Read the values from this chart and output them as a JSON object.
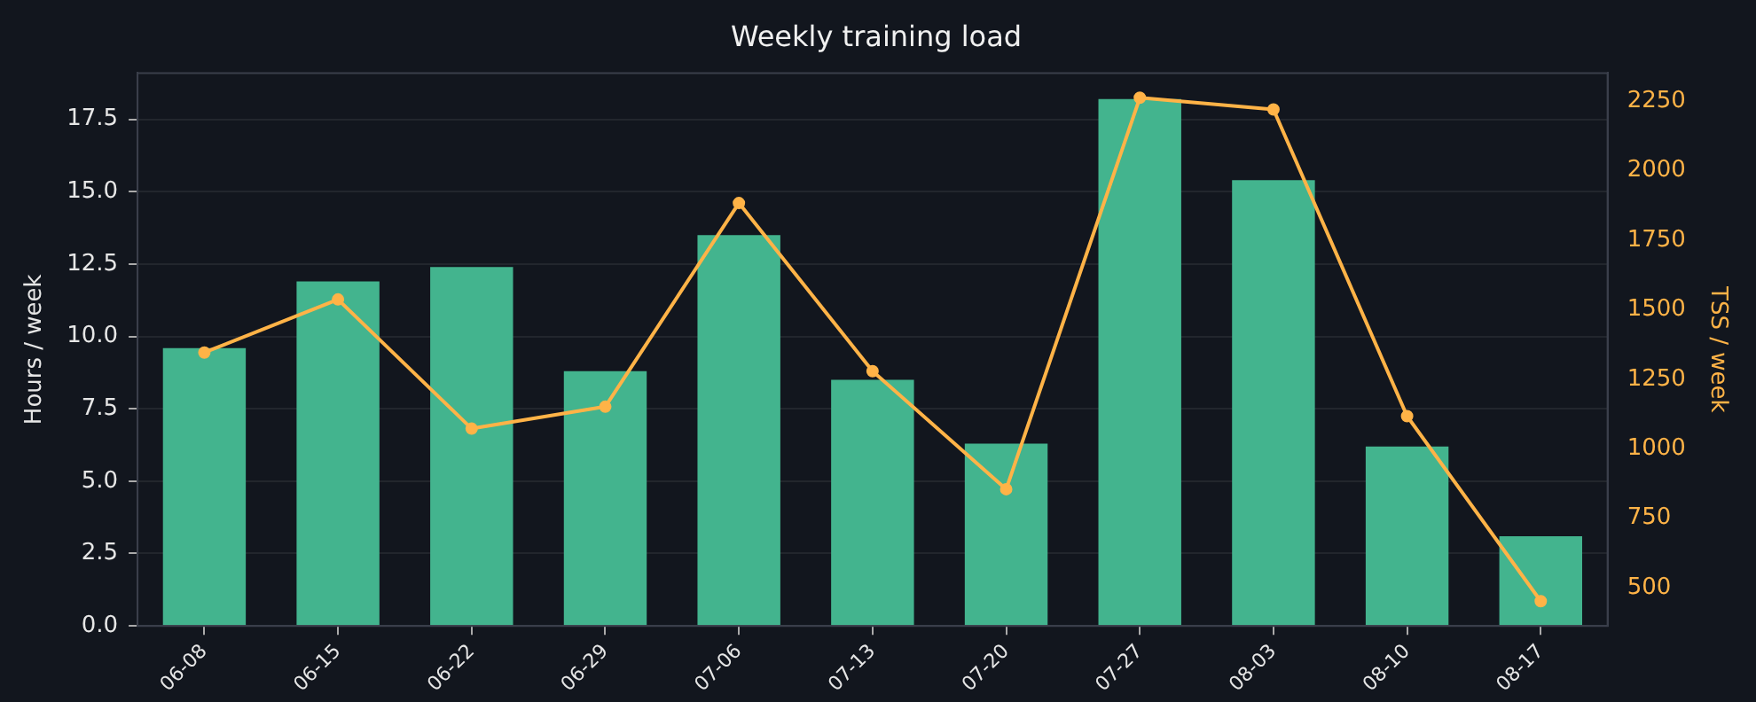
{
  "chart_data": {
    "type": "bar",
    "title": "Weekly training load",
    "ylabel": "Hours / week",
    "y2label": "TSS / week",
    "categories": [
      "06-08",
      "06-15",
      "06-22",
      "06-29",
      "07-06",
      "07-13",
      "07-20",
      "07-27",
      "08-03",
      "08-10",
      "08-17"
    ],
    "series": [
      {
        "name": null,
        "color": "#43b48e",
        "values": [
          9.6,
          11.9,
          12.4,
          8.8,
          13.5,
          8.5,
          6.3,
          18.2,
          15.4,
          6.2,
          3.1
        ]
      },
      {
        "name": null,
        "type": "line",
        "axis": "y2",
        "color": "#ffb347",
        "values": [
          1346,
          1537,
          1072,
          1151,
          1884,
          1279,
          854,
          2263,
          2221,
          1117,
          451
        ]
      }
    ],
    "ylim": [
      0,
      19.1
    ],
    "yticks": [
      {
        "value": 0,
        "label": "0.0"
      },
      {
        "value": 2.5,
        "label": "2.5"
      },
      {
        "value": 5,
        "label": "5.0"
      },
      {
        "value": 7.5,
        "label": "7.5"
      },
      {
        "value": 10,
        "label": "10.0"
      },
      {
        "value": 12.5,
        "label": "12.5"
      },
      {
        "value": 15,
        "label": "15.0"
      },
      {
        "value": 17.5,
        "label": "17.5"
      }
    ],
    "y2lim": [
      362,
      2352
    ],
    "y2ticks": [
      500,
      750,
      1000,
      1250,
      1500,
      1750,
      2000,
      2250
    ],
    "grid": "y",
    "legend": false,
    "marker": "circle",
    "line_style": "solid"
  }
}
